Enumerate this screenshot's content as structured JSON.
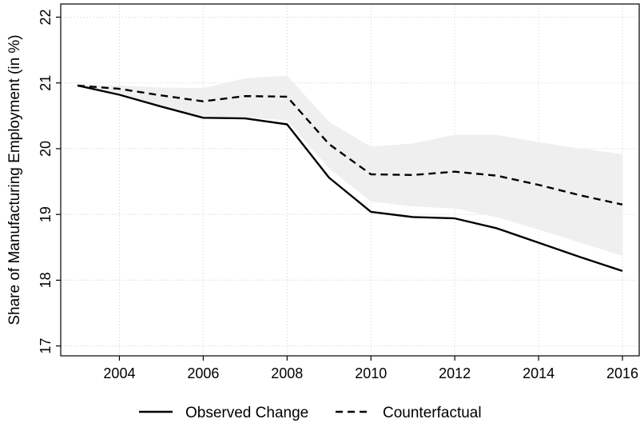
{
  "chart_data": {
    "type": "line",
    "title": "",
    "xlabel": "",
    "ylabel": "Share of Manufacturing Employment (in %)",
    "xlim": [
      2002.6,
      2016.4
    ],
    "ylim": [
      16.85,
      22.2
    ],
    "x_ticks": [
      2004,
      2006,
      2008,
      2010,
      2012,
      2014,
      2016
    ],
    "x_tick_labels": [
      "2004",
      "2006",
      "2008",
      "2010",
      "2012",
      "2014",
      "2016"
    ],
    "y_ticks": [
      17,
      18,
      19,
      20,
      21,
      22
    ],
    "y_tick_labels": [
      "17",
      "18",
      "19",
      "20",
      "21",
      "22"
    ],
    "grid": true,
    "legend_position": "bottom",
    "x": [
      2003,
      2004,
      2005,
      2006,
      2007,
      2008,
      2009,
      2010,
      2011,
      2012,
      2013,
      2014,
      2015,
      2016
    ],
    "series": [
      {
        "name": "Observed Change",
        "style": "solid",
        "color": "#000000",
        "values": [
          20.96,
          20.82,
          20.64,
          20.47,
          20.46,
          20.37,
          19.56,
          19.04,
          18.96,
          18.94,
          18.79,
          18.57,
          18.35,
          18.14
        ]
      },
      {
        "name": "Counterfactual",
        "style": "dashed",
        "color": "#000000",
        "values": [
          20.96,
          20.91,
          20.81,
          20.72,
          20.8,
          20.79,
          20.07,
          19.61,
          19.6,
          19.65,
          19.59,
          19.45,
          19.29,
          19.15
        ]
      }
    ],
    "confidence_band": {
      "color": "#efefef",
      "upper": [
        20.96,
        20.96,
        20.93,
        20.92,
        21.07,
        21.11,
        20.41,
        20.03,
        20.08,
        20.21,
        20.21,
        20.1,
        20.0,
        19.92
      ],
      "lower": [
        20.96,
        20.84,
        20.65,
        20.48,
        20.48,
        20.43,
        19.7,
        19.2,
        19.12,
        19.09,
        18.96,
        18.77,
        18.57,
        18.37
      ]
    }
  }
}
